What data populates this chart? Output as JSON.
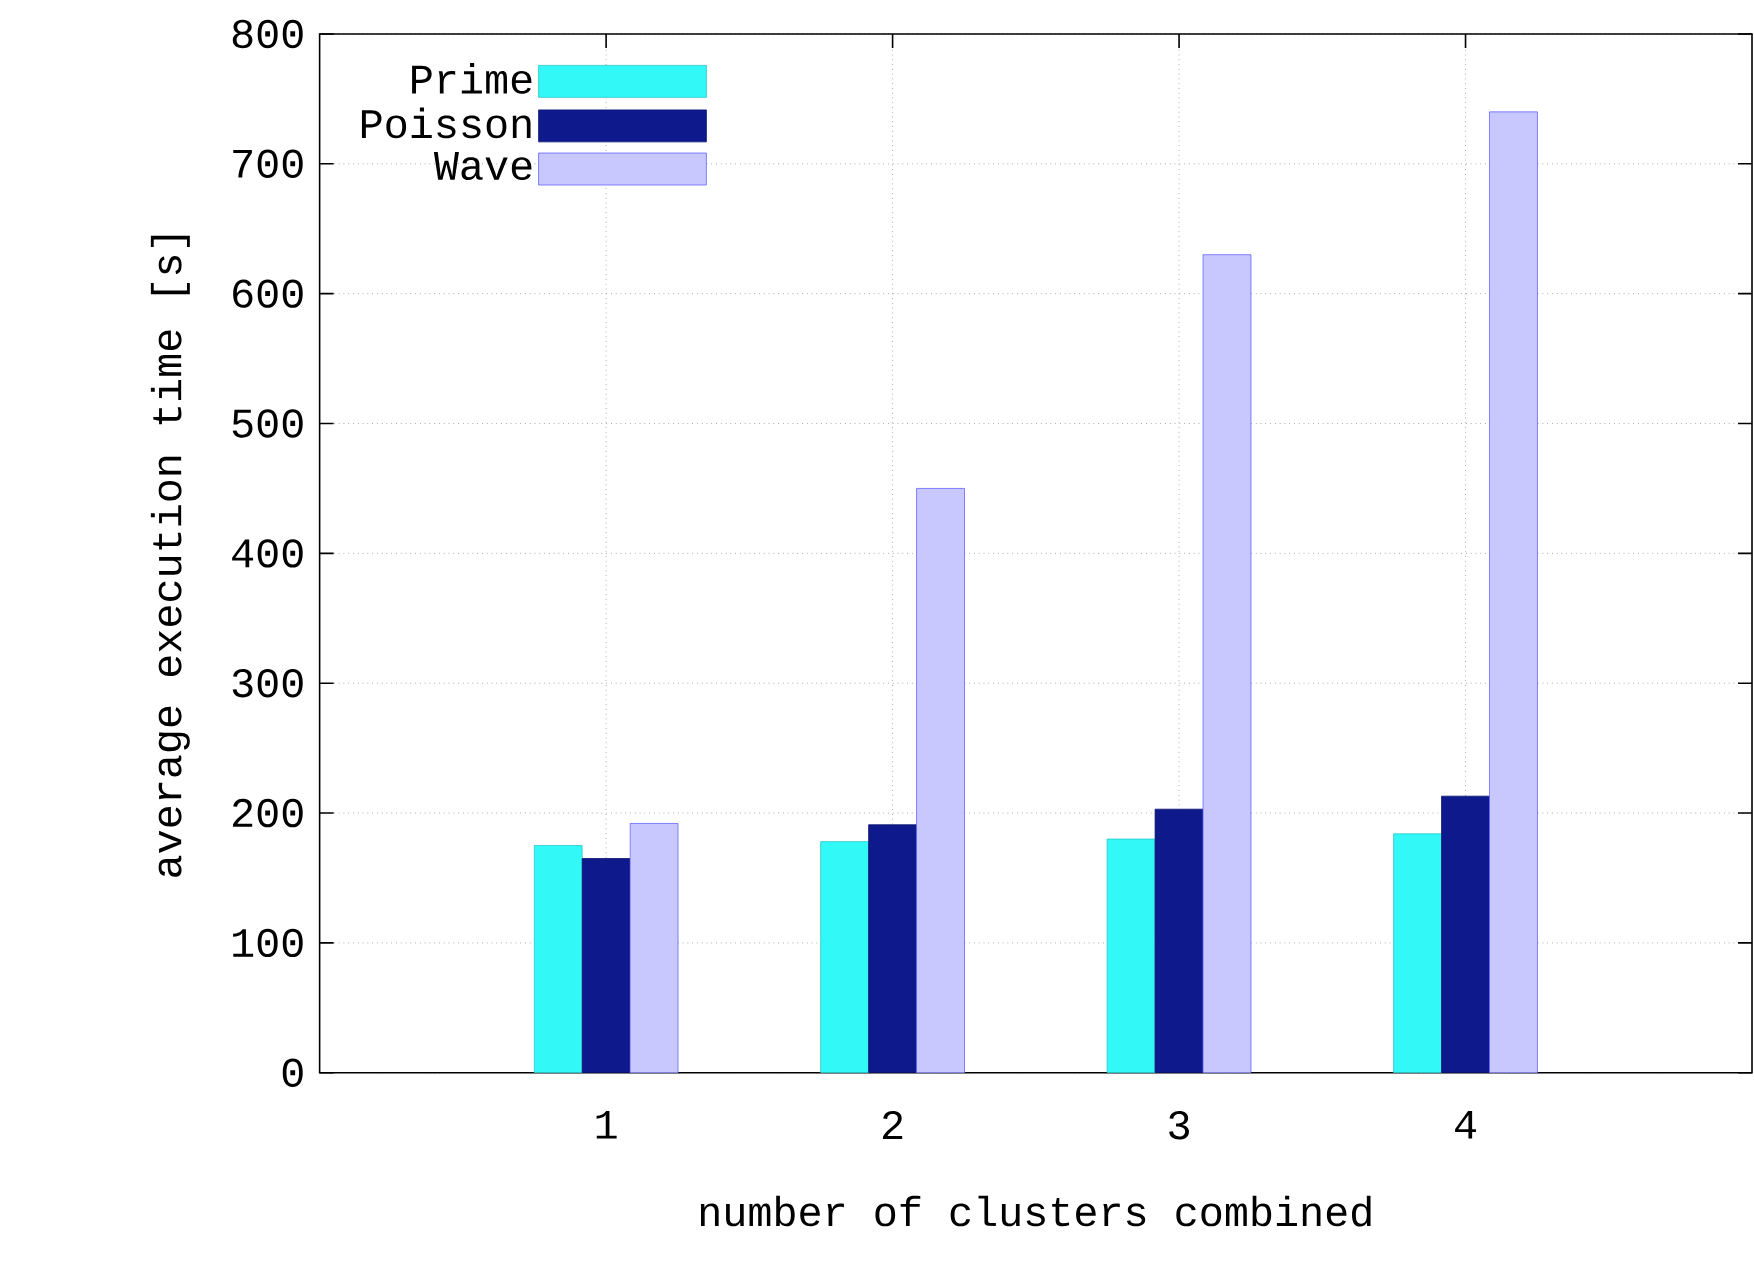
{
  "chart_data": {
    "type": "bar",
    "xlabel": "number of clusters combined",
    "ylabel": "average execution time [s]",
    "categories": [
      "1",
      "2",
      "3",
      "4"
    ],
    "series": [
      {
        "name": "Prime",
        "color": "#33f8f8",
        "values": [
          175,
          178,
          180,
          184
        ]
      },
      {
        "name": "Poisson",
        "color": "#0e1a8c",
        "values": [
          165,
          191,
          203,
          213
        ]
      },
      {
        "name": "Wave",
        "color": "#c8c8ff",
        "values": [
          192,
          450,
          630,
          740
        ]
      }
    ],
    "ylim": [
      0,
      800
    ],
    "yticks": [
      0,
      100,
      200,
      300,
      400,
      500,
      600,
      700,
      800
    ],
    "grid": true,
    "legend": "top left"
  }
}
